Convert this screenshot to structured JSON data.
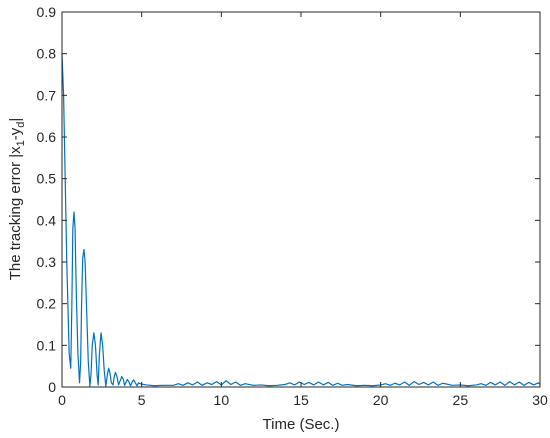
{
  "chart_data": {
    "type": "line",
    "title": "",
    "xlabel": "Time (Sec.)",
    "ylabel": {
      "prefix": "The tracking error |x",
      "sub1": "1",
      "middle": "-y",
      "sub2": "d",
      "suffix": "|"
    },
    "xlim": [
      0,
      30
    ],
    "ylim": [
      0,
      0.9
    ],
    "xticks": [
      0,
      5,
      10,
      15,
      20,
      25,
      30
    ],
    "yticks": [
      0,
      0.1,
      0.2,
      0.3,
      0.4,
      0.5,
      0.6,
      0.7,
      0.8,
      0.9
    ],
    "xtick_labels": [
      "0",
      "5",
      "10",
      "15",
      "20",
      "25",
      "30"
    ],
    "ytick_labels": [
      "0",
      "0.1",
      "0.2",
      "0.3",
      "0.4",
      "0.5",
      "0.6",
      "0.7",
      "0.8",
      "0.9"
    ],
    "grid": false,
    "box": true,
    "line_color": "#0072BD",
    "axis_color": "#262626",
    "series": [
      {
        "x": [
          0,
          0.1,
          0.3,
          0.45,
          0.55,
          0.62,
          0.68,
          0.75,
          0.82,
          0.9,
          1.0,
          1.1,
          1.17,
          1.23,
          1.3,
          1.38,
          1.45,
          1.55,
          1.65,
          1.75,
          1.82,
          1.9,
          2.0,
          2.1,
          2.2,
          2.27,
          2.35,
          2.45,
          2.55,
          2.65,
          2.75,
          2.85,
          2.93,
          3.0,
          3.1,
          3.2,
          3.28,
          3.35,
          3.45,
          3.55,
          3.65,
          3.75,
          3.85,
          3.93,
          4.0,
          4.1,
          4.2,
          4.3,
          4.4,
          4.5,
          4.6,
          4.7,
          4.8,
          4.9,
          5.0,
          5.3,
          5.8,
          6.3,
          7.0,
          7.3,
          7.6,
          7.9,
          8.2,
          8.5,
          8.8,
          9.1,
          9.4,
          9.7,
          10.0,
          10.3,
          10.6,
          10.9,
          11.2,
          11.5,
          12.0,
          12.5,
          13.0,
          13.5,
          14.0,
          14.3,
          14.6,
          14.9,
          15.2,
          15.5,
          15.8,
          16.1,
          16.4,
          16.7,
          17.0,
          17.3,
          17.6,
          17.9,
          18.5,
          19.0,
          19.5,
          20.0,
          20.3,
          20.6,
          20.9,
          21.2,
          21.5,
          21.8,
          22.1,
          22.4,
          22.7,
          23.0,
          23.3,
          23.6,
          23.9,
          24.5,
          25.0,
          25.5,
          26.0,
          26.3,
          26.6,
          26.9,
          27.2,
          27.5,
          27.8,
          28.1,
          28.4,
          28.7,
          29.0,
          29.3,
          29.6,
          29.9,
          30.0
        ],
        "y": [
          0.8,
          0.7,
          0.3,
          0.08,
          0.045,
          0.2,
          0.38,
          0.42,
          0.38,
          0.22,
          0.08,
          0.01,
          0.06,
          0.2,
          0.31,
          0.33,
          0.3,
          0.18,
          0.06,
          0.002,
          0.03,
          0.1,
          0.13,
          0.1,
          0.03,
          0.005,
          0.08,
          0.13,
          0.1,
          0.04,
          0.002,
          0.03,
          0.045,
          0.035,
          0.01,
          0.005,
          0.025,
          0.035,
          0.025,
          0.005,
          0.015,
          0.025,
          0.018,
          0.004,
          0.01,
          0.018,
          0.012,
          0.003,
          0.012,
          0.017,
          0.01,
          0.003,
          0.01,
          0.008,
          0.007,
          0.005,
          0.003,
          0.004,
          0.004,
          0.008,
          0.004,
          0.01,
          0.005,
          0.012,
          0.004,
          0.01,
          0.006,
          0.013,
          0.005,
          0.015,
          0.006,
          0.012,
          0.004,
          0.008,
          0.004,
          0.005,
          0.003,
          0.004,
          0.006,
          0.01,
          0.005,
          0.012,
          0.006,
          0.011,
          0.005,
          0.012,
          0.005,
          0.011,
          0.004,
          0.009,
          0.004,
          0.006,
          0.003,
          0.004,
          0.003,
          0.005,
          0.008,
          0.004,
          0.009,
          0.005,
          0.012,
          0.004,
          0.013,
          0.006,
          0.011,
          0.005,
          0.012,
          0.004,
          0.009,
          0.004,
          0.005,
          0.003,
          0.005,
          0.008,
          0.004,
          0.011,
          0.005,
          0.012,
          0.004,
          0.013,
          0.005,
          0.012,
          0.004,
          0.011,
          0.005,
          0.01,
          0.006
        ]
      }
    ]
  }
}
